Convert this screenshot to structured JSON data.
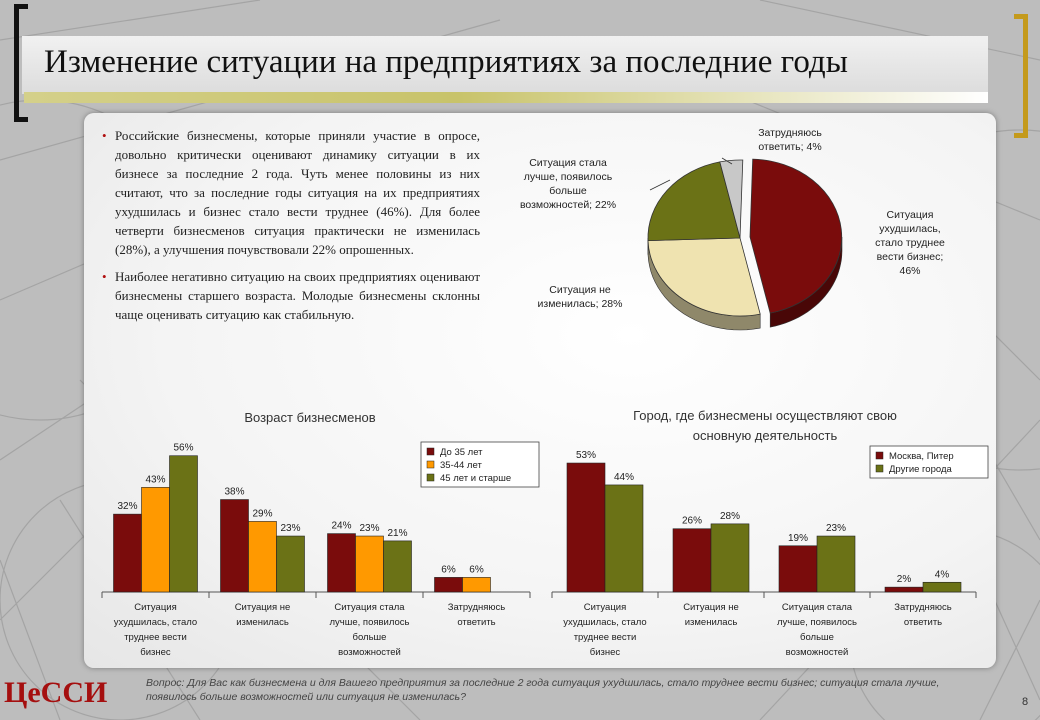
{
  "slide": {
    "title": "Изменение ситуации на предприятиях за последние годы",
    "logo": "ЦеССИ",
    "page_number": "8",
    "footnote": "Вопрос: Для Вас как бизнесмена и для Вашего предприятия за последние 2 года ситуация ухудшилась, стало труднее вести бизнес; ситуация стала лучше, появилось больше возможностей или ситуация не изменилась?"
  },
  "bullets": [
    "Российские бизнесмены, которые приняли участие в опросе, довольно критически оценивают динамику ситуации в их бизнесе за последние 2 года. Чуть менее половины из них считают, что за последние годы ситуация на их предприятиях ухудшилась и бизнес стало вести труднее (46%). Для более четверти бизнесменов ситуация практически не изменилась (28%), а улучшения почувствовали 22% опрошенных.",
    "Наиболее негативно ситуацию на своих предприятиях оценивают бизнесмены старшего возраста. Молодые бизнесмены склонны чаще оценивать ситуацию как стабильную."
  ],
  "colors": {
    "dark_red": "#7a0c0c",
    "orange": "#ff9900",
    "olive": "#6b7216",
    "beige": "#efe3b0",
    "gray": "#c8c8c8",
    "bullet": "#b01010"
  },
  "chart_data": [
    {
      "type": "pie",
      "labels": [
        "Ситуация ухудшилась, стало труднее вести бизнес; 46%",
        "Ситуация не изменилась; 28%",
        "Ситуация стала лучше, появилось больше возможностей; 22%",
        "Затрудняюсь ответить; 4%"
      ],
      "values": [
        46,
        28,
        22,
        4
      ],
      "colors": [
        "#7a0c0c",
        "#efe3b0",
        "#6b7216",
        "#c8c8c8"
      ]
    },
    {
      "type": "bar",
      "title": "Возраст бизнесменов",
      "categories": [
        "Ситуация ухудшилась, стало труднее вести бизнес",
        "Ситуация не изменилась",
        "Ситуация стала лучше, появилось больше возможностей",
        "Затрудняюсь ответить"
      ],
      "series": [
        {
          "name": "До 35 лет",
          "color": "#7a0c0c",
          "values": [
            32,
            38,
            24,
            6
          ]
        },
        {
          "name": "35-44 лет",
          "color": "#ff9900",
          "values": [
            43,
            29,
            23,
            6
          ]
        },
        {
          "name": "45 лет и старше",
          "color": "#6b7216",
          "values": [
            56,
            23,
            21,
            null
          ]
        }
      ],
      "ylim": [
        0,
        60
      ],
      "legend": "top-right",
      "value_suffix": "%"
    },
    {
      "type": "bar",
      "title": "Город, где бизнесмены осуществляют свою основную деятельность",
      "categories": [
        "Ситуация ухудшилась, стало труднее вести бизнес",
        "Ситуация не изменилась",
        "Ситуация стала лучше, появилось больше возможностей",
        "Затрудняюсь ответить"
      ],
      "series": [
        {
          "name": "Москва, Питер",
          "color": "#7a0c0c",
          "values": [
            53,
            26,
            19,
            2
          ]
        },
        {
          "name": "Другие города",
          "color": "#6b7216",
          "values": [
            44,
            28,
            23,
            4
          ]
        }
      ],
      "ylim": [
        0,
        60
      ],
      "legend": "top-right",
      "value_suffix": "%"
    }
  ]
}
